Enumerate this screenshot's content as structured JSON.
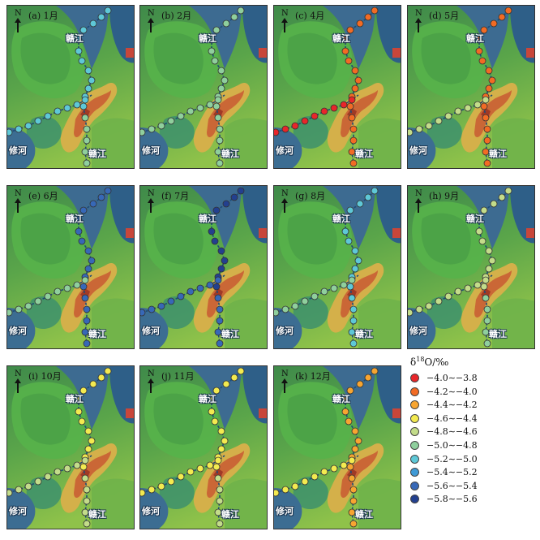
{
  "north_label": "N",
  "rivers": {
    "gan": "赣江",
    "xiu": "修河"
  },
  "panels": [
    {
      "id": "a",
      "title": "(a) 1月",
      "gan_main": "light_blue",
      "gan_south": "sea_green",
      "xiu": "light_blue"
    },
    {
      "id": "b",
      "title": "(b) 2月",
      "gan_main": "sea_green",
      "gan_south": "sea_green",
      "xiu": "sea_green"
    },
    {
      "id": "c",
      "title": "(c) 4月",
      "gan_main": "orange",
      "gan_south": "orange",
      "xiu": "red"
    },
    {
      "id": "d",
      "title": "(d) 5月",
      "gan_main": "orange",
      "gan_south": "orange",
      "xiu": "light_green"
    },
    {
      "id": "e",
      "title": "(e) 6月",
      "gan_main": "blue_dark",
      "gan_south": "blue_dark",
      "xiu": "sea_green"
    },
    {
      "id": "f",
      "title": "(f) 7月",
      "gan_main": "navy",
      "gan_south": "blue_dark",
      "xiu": "blue_dark"
    },
    {
      "id": "g",
      "title": "(g) 8月",
      "gan_main": "light_blue",
      "gan_south": "light_blue",
      "xiu": "sea_green"
    },
    {
      "id": "h",
      "title": "(h) 9月",
      "gan_main": "light_green",
      "gan_south": "sea_green",
      "xiu": "light_green"
    },
    {
      "id": "i",
      "title": "(i) 10月",
      "gan_main": "yellow",
      "gan_south": "light_green",
      "xiu": "light_green"
    },
    {
      "id": "j",
      "title": "(j) 11月",
      "gan_main": "yellow",
      "gan_south": "light_green",
      "xiu": "yellow"
    },
    {
      "id": "k",
      "title": "(k) 12月",
      "gan_main": "orange_light",
      "gan_south": "orange_light",
      "xiu": "yellow"
    }
  ],
  "legend": {
    "title_prefix": "δ",
    "title_sup": "18",
    "title_suffix": "O/‰",
    "items": [
      {
        "key": "red",
        "label": "−4.0∼−3.8",
        "color": "#e8262a"
      },
      {
        "key": "orange",
        "label": "−4.2∼−4.0",
        "color": "#f26b24"
      },
      {
        "key": "orange_light",
        "label": "−4.4∼−4.2",
        "color": "#f7a531"
      },
      {
        "key": "yellow",
        "label": "−4.6∼−4.4",
        "color": "#f3ea50"
      },
      {
        "key": "light_green",
        "label": "−4.8∼−4.6",
        "color": "#c3dc8a"
      },
      {
        "key": "sea_green",
        "label": "−5.0∼−4.8",
        "color": "#8fcf9d"
      },
      {
        "key": "light_blue",
        "label": "−5.2∼−5.0",
        "color": "#5ec8d7"
      },
      {
        "key": "blue_mid",
        "label": "−5.4∼−5.2",
        "color": "#3f9ad6"
      },
      {
        "key": "blue_dark",
        "label": "−5.6∼−5.4",
        "color": "#3768b7"
      },
      {
        "key": "navy",
        "label": "−5.8∼−5.6",
        "color": "#23408f"
      }
    ]
  }
}
